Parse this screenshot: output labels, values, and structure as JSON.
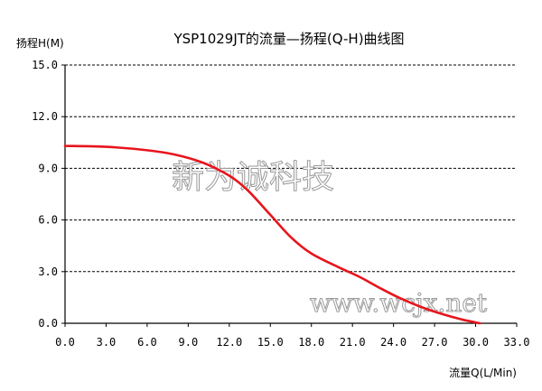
{
  "chart_data": {
    "type": "line",
    "title": "YSP1029JT的流量—扬程(Q-H)曲线图",
    "xlabel": "流量Q(L/Min)",
    "ylabel": "扬程H(M)",
    "xlim": [
      0,
      33
    ],
    "ylim": [
      0,
      15
    ],
    "x_ticks": [
      "0.0",
      "3.0",
      "6.0",
      "9.0",
      "12.0",
      "15.0",
      "18.0",
      "21.0",
      "24.0",
      "27.0",
      "30.0",
      "33.0"
    ],
    "y_ticks": [
      "0.0",
      "3.0",
      "6.0",
      "9.0",
      "12.0",
      "15.0"
    ],
    "grid": "horizontal dashed",
    "series": [
      {
        "color": "#e8141c",
        "x": [
          0,
          3,
          6,
          8,
          10,
          11.5,
          12.5,
          13.5,
          15,
          16.5,
          18,
          20,
          21.5,
          23,
          24.5,
          26,
          27.5,
          29,
          30.3
        ],
        "y": [
          10.3,
          10.25,
          10.05,
          9.8,
          9.35,
          8.8,
          8.3,
          7.6,
          6.3,
          5.0,
          4.05,
          3.25,
          2.7,
          2.05,
          1.45,
          0.95,
          0.55,
          0.22,
          0.0
        ]
      }
    ],
    "watermarks": [
      "新为诚科技",
      "www.wcjx.net"
    ]
  }
}
